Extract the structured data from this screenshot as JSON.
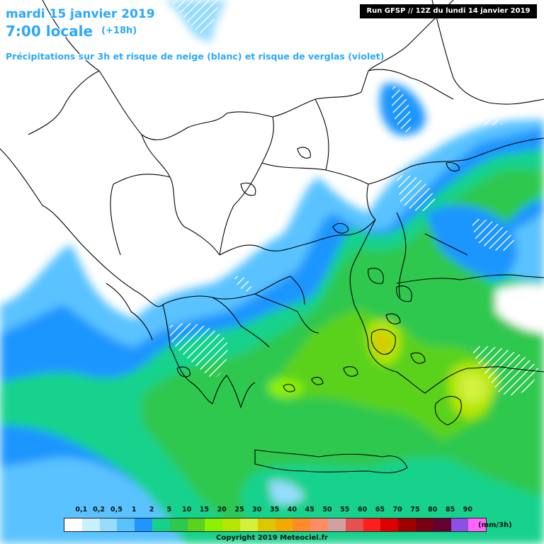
{
  "header": {
    "date": "mardi 15 janvier 2019",
    "time": "7:00 locale",
    "lead": "(+18h)",
    "description": "Précipitations sur 3h et risque de neige (blanc) et risque de verglas (violet)",
    "run": "Run GFSP // 12Z du lundi 14 janvier 2019"
  },
  "legend": {
    "labels": [
      "0,1",
      "0,2",
      "0,5",
      "1",
      "2",
      "5",
      "10",
      "15",
      "20",
      "25",
      "30",
      "35",
      "40",
      "45",
      "50",
      "55",
      "60",
      "65",
      "70",
      "75",
      "80",
      "85",
      "90"
    ],
    "colors": [
      "#ffffff",
      "#c8f0ff",
      "#96dcff",
      "#5ac3ff",
      "#1e96ff",
      "#14d28c",
      "#2dc850",
      "#5ad21e",
      "#8cf000",
      "#b4e600",
      "#d2f03c",
      "#dcc800",
      "#f0aa00",
      "#ff8c28",
      "#ff8c64",
      "#d2a0a0",
      "#e65050",
      "#ff1e1e",
      "#dc0000",
      "#a00000",
      "#780014",
      "#640032",
      "#8c50e6",
      "#ff64ff"
    ],
    "unit": "(mm/3h)"
  },
  "copyright": "Copyright 2019 Meteociel.fr"
}
